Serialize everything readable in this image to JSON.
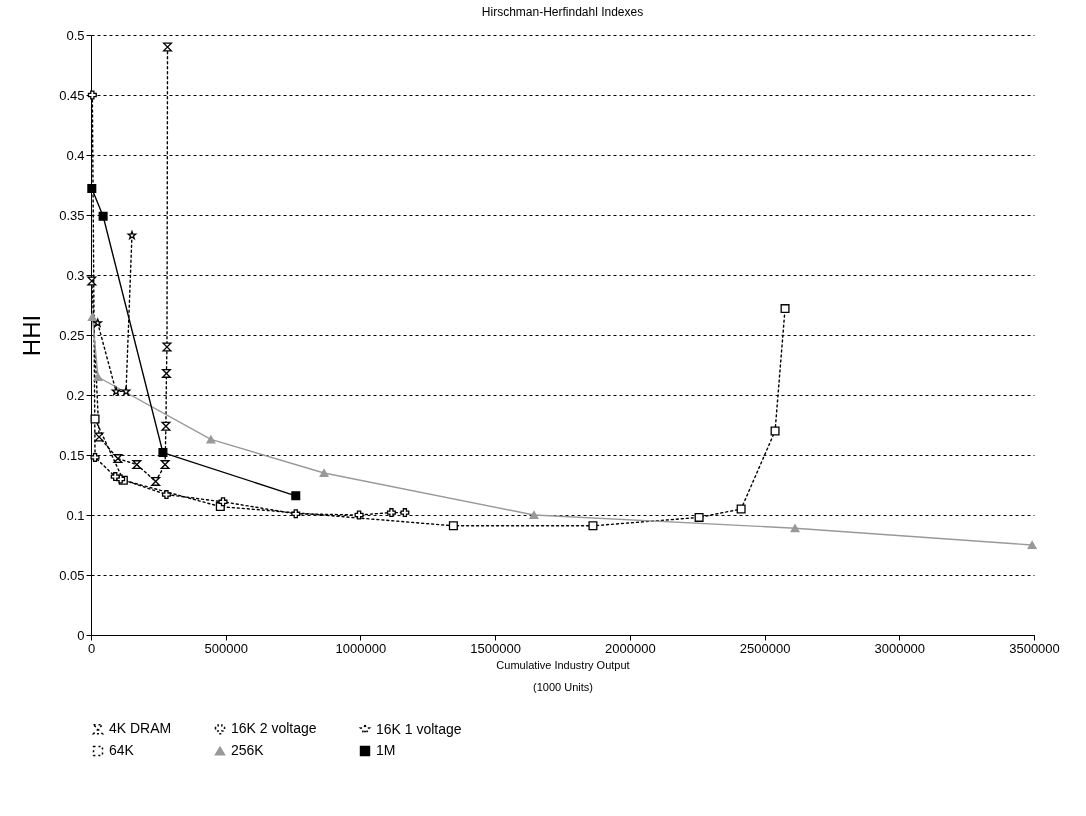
{
  "chart_data": {
    "type": "line",
    "title": "Hirschman-Herfindahl Indexes",
    "xlabel": "Cumulative Industry Output\n(1000 Units)",
    "ylabel": "HHI",
    "xlim": [
      0,
      3500000
    ],
    "xticks": [
      0,
      500000,
      1000000,
      1500000,
      2000000,
      2500000,
      3000000,
      3500000
    ],
    "ylim": [
      0,
      0.5
    ],
    "yticks": [
      0,
      0.05,
      0.1,
      0.15,
      0.2,
      0.25,
      0.3,
      0.35,
      0.4,
      0.45,
      0.5
    ],
    "grid": "y",
    "legend": "bottom",
    "series": [
      {
        "name": "4K DRAM",
        "color": "#000000",
        "marker": "diamond",
        "line_style": "dotted",
        "x": [
          3000,
          30000,
          100000,
          170000,
          240000,
          275000,
          278000,
          280000,
          282000,
          284000
        ],
        "values": [
          0.295,
          0.165,
          0.147,
          0.142,
          0.128,
          0.142,
          0.174,
          0.218,
          0.24,
          0.49
        ]
      },
      {
        "name": "16K 2 voltage",
        "color": "#000000",
        "marker": "cross",
        "line_style": "dotted",
        "x": [
          5000,
          15000,
          90000,
          110000,
          280000,
          490000,
          760000,
          995000,
          1115000,
          1165000
        ],
        "values": [
          0.45,
          0.148,
          0.132,
          0.13,
          0.117,
          0.111,
          0.101,
          0.1,
          0.102,
          0.102
        ]
      },
      {
        "name": "16K 1 voltage",
        "color": "#000000",
        "marker": "star",
        "line_style": "dotted",
        "x": [
          25000,
          93000,
          130000,
          152000
        ],
        "values": [
          0.26,
          0.203,
          0.203,
          0.333
        ]
      },
      {
        "name": "64K",
        "color": "#000000",
        "marker": "square",
        "line_style": "dotted",
        "x": [
          15000,
          120000,
          480000,
          1345000,
          1863000,
          2257000,
          2413000,
          2539000,
          2576000
        ],
        "values": [
          0.18,
          0.129,
          0.107,
          0.091,
          0.091,
          0.098,
          0.105,
          0.17,
          0.272
        ]
      },
      {
        "name": "256K",
        "color": "#999999",
        "marker": "triangle",
        "line_style": "solid",
        "x": [
          5000,
          26000,
          445000,
          865000,
          1644000,
          2613000,
          3493000
        ],
        "values": [
          0.265,
          0.215,
          0.163,
          0.135,
          0.1,
          0.089,
          0.075
        ]
      },
      {
        "name": "1M",
        "color": "#000000",
        "marker": "square",
        "line_style": "solid",
        "x": [
          3000,
          45000,
          267000,
          760000
        ],
        "values": [
          0.372,
          0.349,
          0.152,
          0.116
        ]
      }
    ]
  }
}
